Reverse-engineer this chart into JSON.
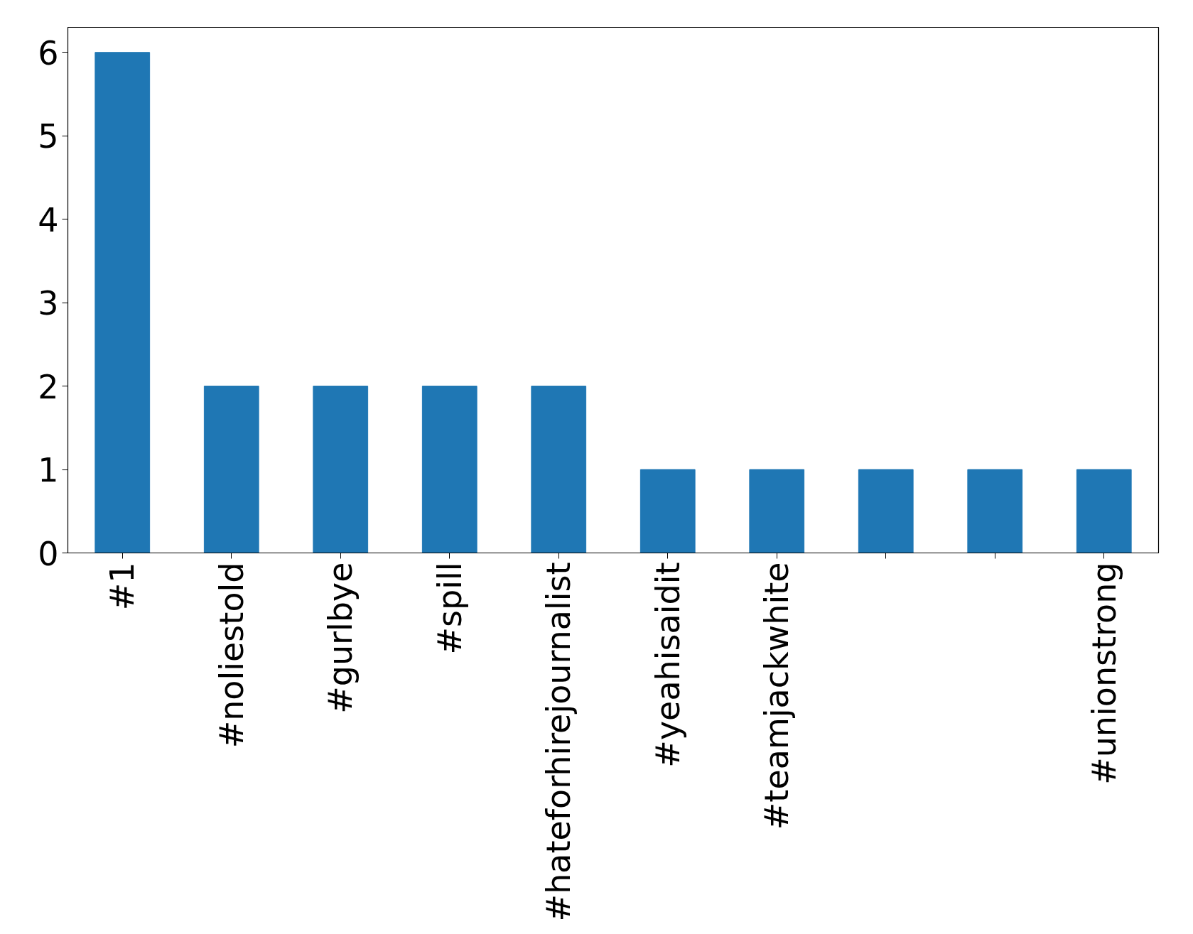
{
  "chart_data": {
    "type": "bar",
    "categories": [
      "#1",
      "#noliestold",
      "#gurlbye",
      "#spill",
      "#hateforhirejournalist",
      "#yeahisaidit",
      "#teamjackwhite",
      null,
      null,
      "#unionstrong"
    ],
    "values": [
      6,
      2,
      2,
      2,
      2,
      1,
      1,
      1,
      1,
      1
    ],
    "color": "#1f77b4",
    "ylim": [
      0,
      6.3
    ],
    "yticks": [
      0,
      1,
      2,
      3,
      4,
      5,
      6
    ],
    "grid": false
  }
}
